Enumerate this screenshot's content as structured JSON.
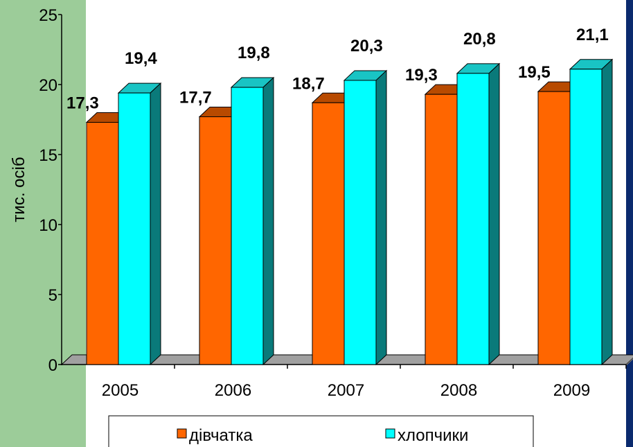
{
  "chart_data": {
    "type": "bar",
    "categories": [
      "2005",
      "2006",
      "2007",
      "2008",
      "2009"
    ],
    "series": [
      {
        "name": "дівчатка",
        "values": [
          17.3,
          17.7,
          18.7,
          19.3,
          19.5
        ],
        "labels": [
          "17,3",
          "17,7",
          "18,7",
          "19,3",
          "19,5"
        ]
      },
      {
        "name": "хлопчики",
        "values": [
          19.4,
          19.8,
          20.3,
          20.8,
          21.1
        ],
        "labels": [
          "19,4",
          "19,8",
          "20,3",
          "20,8",
          "21,1"
        ]
      }
    ],
    "ylabel": "тис. осіб",
    "ylim": [
      0,
      25
    ],
    "yticks": [
      "0",
      "5",
      "10",
      "15",
      "20",
      "25"
    ],
    "legend_position": "bottom",
    "grid": false
  },
  "colors": {
    "left_panel": "#9ccc99",
    "right_panel": "#0a2a6e",
    "girls_front": "#ff6600",
    "girls_top": "#b84a00",
    "girls_side": "#8a3300",
    "boys_front": "#00ffff",
    "boys_top": "#19c4c4",
    "boys_side": "#0a7a7a",
    "floor_top": "#a0a0a0",
    "floor_front": "#6e6e6e"
  }
}
